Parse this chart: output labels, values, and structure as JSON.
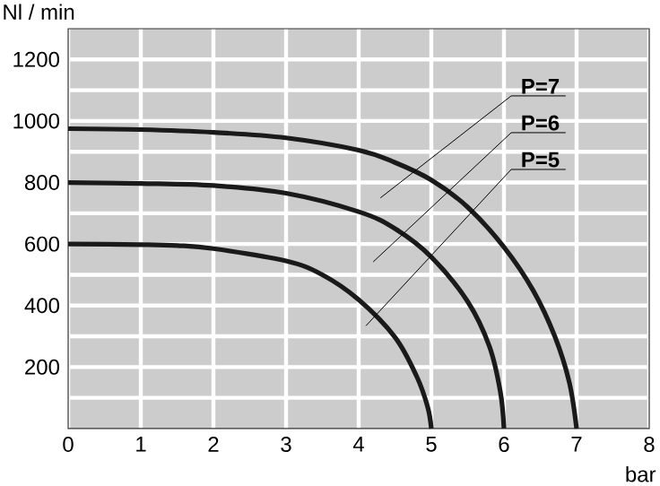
{
  "chart_data": {
    "type": "line",
    "ylabel": "Nl / min",
    "xlabel": "bar",
    "xlim": [
      0,
      8
    ],
    "xticks": [
      0,
      1,
      2,
      3,
      4,
      5,
      6,
      7,
      8
    ],
    "ylim": [
      0,
      1300
    ],
    "yticks": [
      {
        "value": 100,
        "label": null
      },
      200,
      {
        "value": 300,
        "label": null
      },
      400,
      {
        "value": 500,
        "label": null
      },
      600,
      {
        "value": 700,
        "label": null
      },
      800,
      {
        "value": 900,
        "label": null
      },
      1000,
      {
        "value": 1100,
        "label": null
      },
      1200
    ],
    "grid": true,
    "marker": "none",
    "line_style": "solid",
    "series": [
      {
        "name": "P=7",
        "color": "#1a1a1a",
        "x": [
          0,
          1,
          2,
          3,
          4,
          4.5,
          5,
          5.5,
          6,
          6.4,
          6.7,
          6.9,
          7
        ],
        "values": [
          975,
          972,
          963,
          945,
          905,
          865,
          808,
          720,
          590,
          450,
          300,
          150,
          0
        ]
      },
      {
        "name": "P=6",
        "color": "#1a1a1a",
        "x": [
          0,
          1,
          2,
          3,
          4,
          4.5,
          5,
          5.5,
          5.8,
          5.95,
          6
        ],
        "values": [
          800,
          797,
          790,
          765,
          705,
          650,
          558,
          413,
          267,
          120,
          0
        ]
      },
      {
        "name": "P=5",
        "color": "#1a1a1a",
        "x": [
          0,
          1,
          1.5,
          2,
          3,
          3.5,
          4,
          4.5,
          4.8,
          4.95,
          5
        ],
        "values": [
          600,
          598,
          595,
          585,
          545,
          500,
          419,
          297,
          169,
          70,
          0
        ]
      }
    ]
  }
}
